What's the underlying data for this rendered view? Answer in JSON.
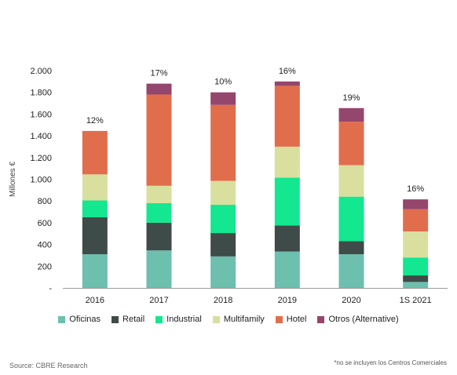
{
  "chart_data": {
    "type": "bar",
    "stacked": true,
    "categories": [
      "2016",
      "2017",
      "2018",
      "2019",
      "2020",
      "1S 2021"
    ],
    "series": [
      {
        "name": "Oficinas",
        "color": "#6dbfae",
        "values": [
          310,
          345,
          290,
          335,
          310,
          55
        ]
      },
      {
        "name": "Retail",
        "color": "#3f4b48",
        "values": [
          340,
          255,
          215,
          240,
          120,
          60
        ]
      },
      {
        "name": "Industrial",
        "color": "#13e78f",
        "values": [
          155,
          180,
          260,
          440,
          410,
          165
        ]
      },
      {
        "name": "Multifamily",
        "color": "#d9df9e",
        "values": [
          240,
          160,
          220,
          285,
          290,
          240
        ]
      },
      {
        "name": "Hotel",
        "color": "#e06e4c",
        "values": [
          400,
          840,
          700,
          560,
          400,
          205
        ]
      },
      {
        "name": "Otros (Alternative)",
        "color": "#95466d",
        "values": [
          0,
          100,
          115,
          40,
          125,
          90
        ]
      }
    ],
    "top_labels": [
      "12%",
      "17%",
      "10%",
      "16%",
      "19%",
      "16%"
    ],
    "ylabel": "Millones €",
    "ylim": [
      0,
      2000
    ],
    "yticks": [
      {
        "value": 0,
        "label": "-"
      },
      {
        "value": 200,
        "label": "200"
      },
      {
        "value": 400,
        "label": "400"
      },
      {
        "value": 600,
        "label": "600"
      },
      {
        "value": 800,
        "label": "800"
      },
      {
        "value": 1000,
        "label": "1.000"
      },
      {
        "value": 1200,
        "label": "1.200"
      },
      {
        "value": 1400,
        "label": "1.400"
      },
      {
        "value": 1600,
        "label": "1.600"
      },
      {
        "value": 1800,
        "label": "1.800"
      },
      {
        "value": 2000,
        "label": "2.000"
      }
    ],
    "grid": false,
    "legend_position": "bottom"
  },
  "footer": {
    "source": "Source: CBRE Research",
    "note": "*no se incluyen los Centros Comerciales"
  }
}
